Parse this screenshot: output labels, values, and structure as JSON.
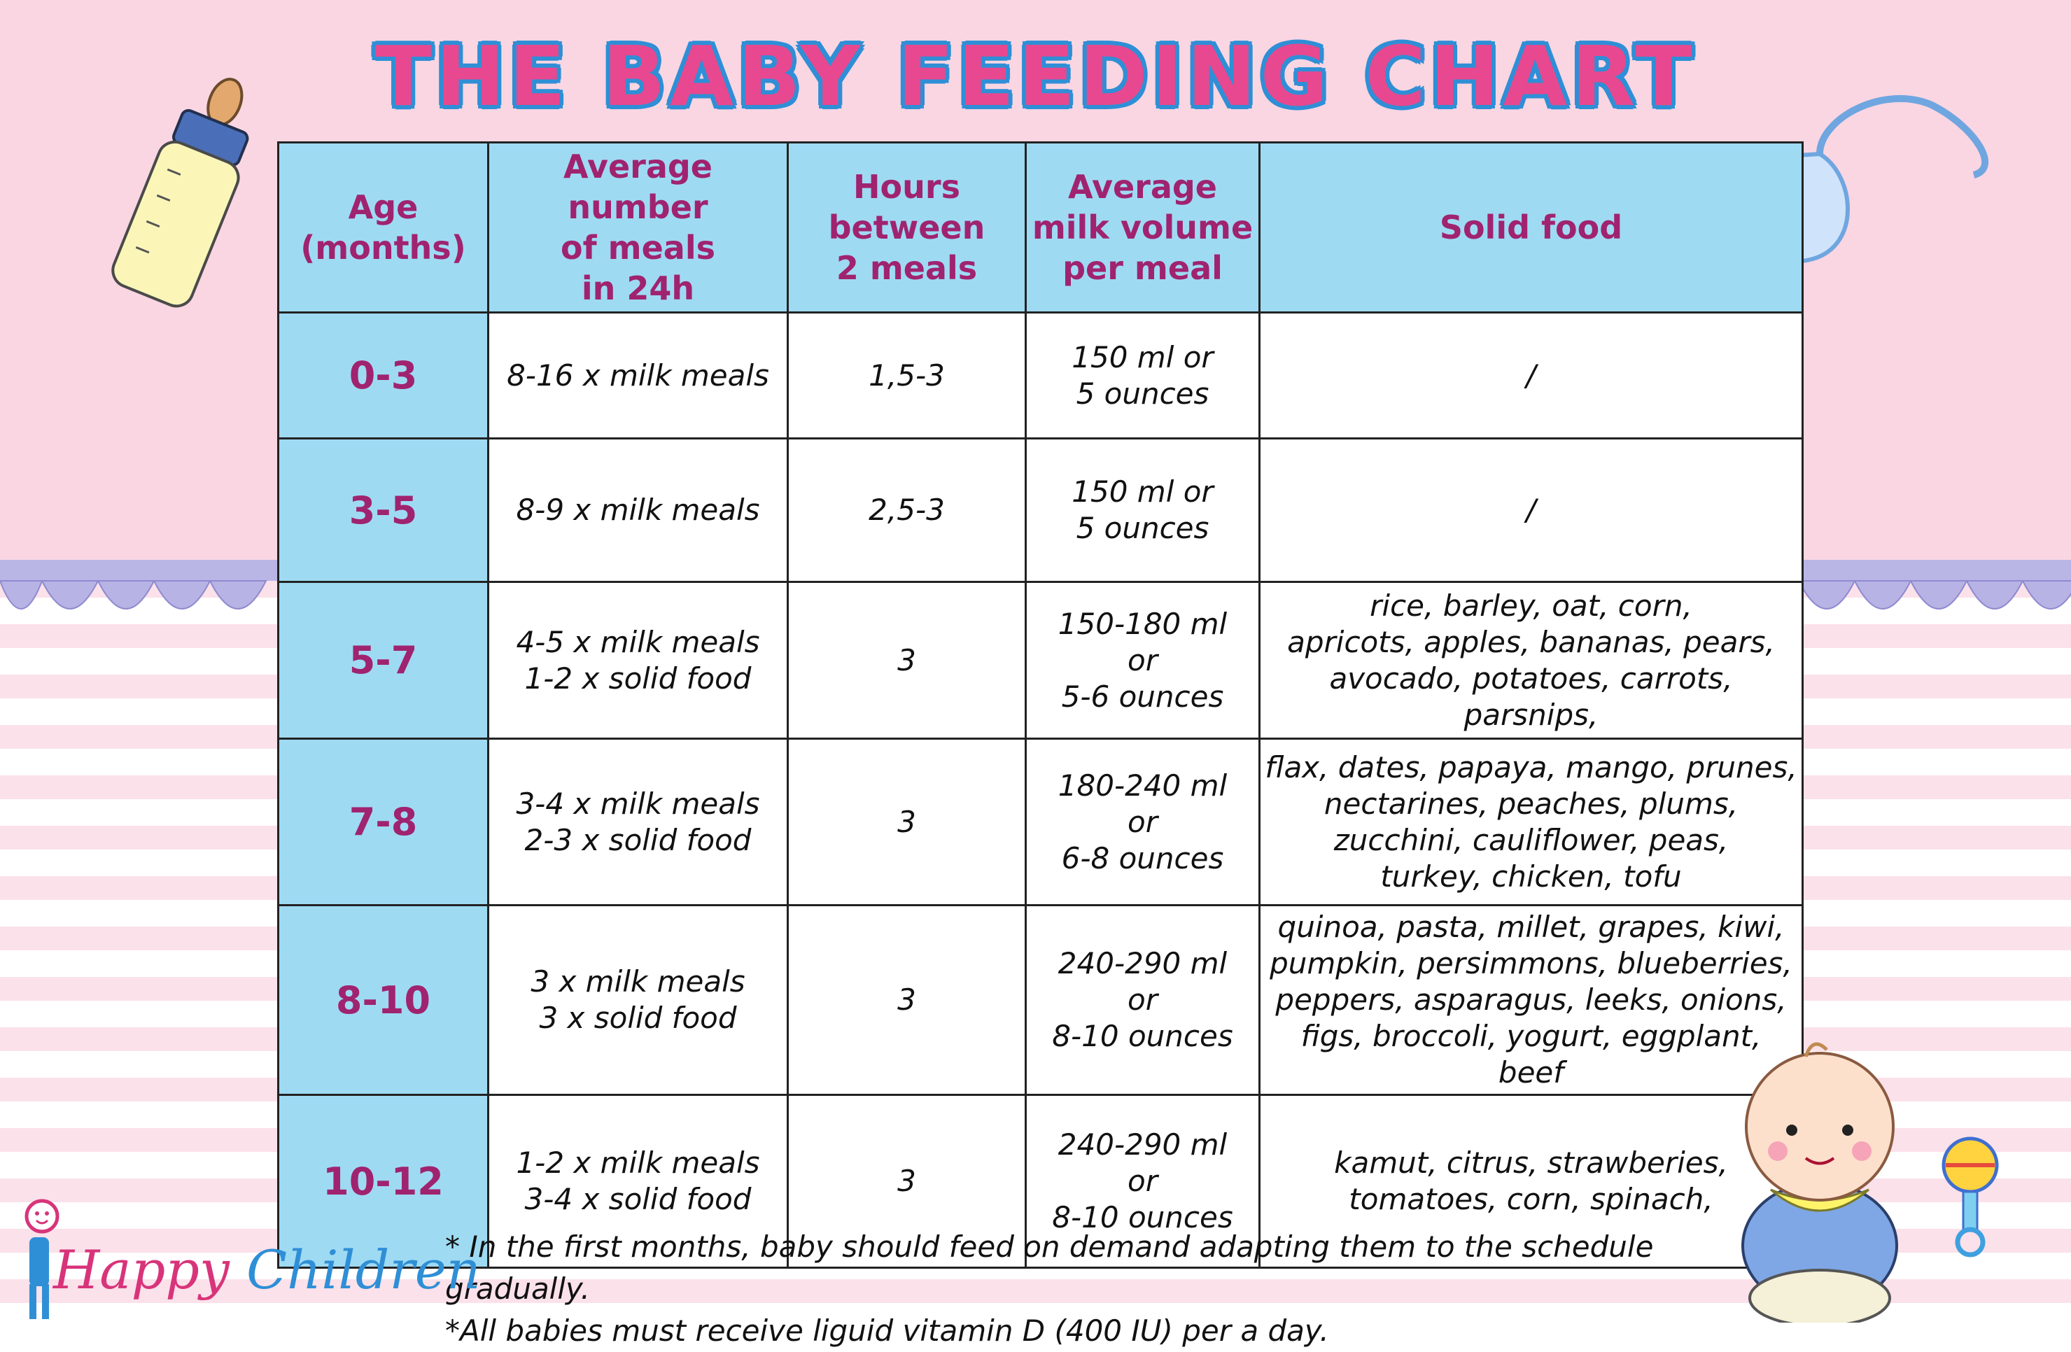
{
  "title": "THE BABY FEEDING CHART",
  "table": {
    "headers": {
      "age": "Age\n(months)",
      "meals": "Average number\nof meals\nin 24h",
      "hours": "Hours\nbetween\n2 meals",
      "milk": "Average\nmilk volume\nper meal",
      "solid": "Solid food"
    },
    "rows": [
      {
        "age": "0-3",
        "meals": "8-16 x milk meals",
        "hours": "1,5-3",
        "milk": "150 ml or\n5 ounces",
        "solid": "/"
      },
      {
        "age": "3-5",
        "meals": "8-9 x milk meals",
        "hours": "2,5-3",
        "milk": "150 ml or\n5 ounces",
        "solid": "/"
      },
      {
        "age": "5-7",
        "meals": "4-5 x milk meals\n1-2 x solid food",
        "hours": "3",
        "milk": "150-180 ml\nor\n5-6 ounces",
        "solid": "rice, barley, oat, corn,\napricots, apples, bananas, pears,\navocado, potatoes, carrots, parsnips,"
      },
      {
        "age": "7-8",
        "meals": "3-4 x milk meals\n2-3 x solid food",
        "hours": "3",
        "milk": "180-240 ml\nor\n6-8 ounces",
        "solid": "flax, dates, papaya, mango, prunes,\nnectarines, peaches, plums,\nzucchini, cauliflower, peas,\nturkey, chicken, tofu"
      },
      {
        "age": "8-10",
        "meals": "3 x milk meals\n3 x solid food",
        "hours": "3",
        "milk": "240-290 ml\nor\n8-10 ounces",
        "solid": "quinoa, pasta, millet, grapes, kiwi,\npumpkin, persimmons, blueberries,\npeppers, asparagus, leeks, onions,\nfigs, broccoli, yogurt, eggplant, beef"
      },
      {
        "age": "10-12",
        "meals": "1-2 x milk meals\n3-4 x solid food",
        "hours": "3",
        "milk": "240-290 ml\nor\n8-10 ounces",
        "solid": "kamut, citrus, strawberies,\ntomatoes, corn, spinach,"
      }
    ]
  },
  "notes": [
    "* In the first months, baby should feed on demand adapting them to the schedule gradually.",
    "*All babies must receive liguid vitamin D (400 IU) per a day."
  ],
  "logo": {
    "first": "Happy",
    "second": "Children"
  },
  "icons": [
    "baby-bottle-icon",
    "bib-icon",
    "baby-icon",
    "rattle-icon",
    "lace-border",
    "happy-children-logo"
  ],
  "colors": {
    "header_bg": "#9fdaf3",
    "header_text": "#a0236f",
    "title_fill": "#e8488f",
    "title_outline": "#2f8fd6",
    "pink_bg": "#f9d6e2"
  }
}
